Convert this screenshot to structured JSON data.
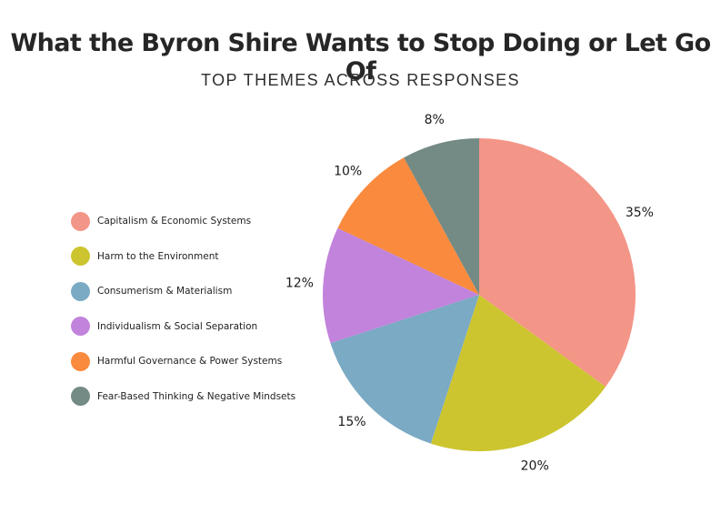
{
  "chart_data": {
    "type": "pie",
    "title": "What the Byron Shire Wants to Stop Doing or Let Go Of",
    "subtitle": "TOP THEMES ACROSS RESPONSES",
    "legend_position": "left",
    "slices": [
      {
        "name": "Capitalism & Economic Systems",
        "value": 35,
        "label": "35%",
        "color": "#F39587"
      },
      {
        "name": "Harm to the Environment",
        "value": 20,
        "label": "20%",
        "color": "#CCC52F"
      },
      {
        "name": "Consumerism & Materialism",
        "value": 15,
        "label": "15%",
        "color": "#7AAAC4"
      },
      {
        "name": "Individualism & Social Separation",
        "value": 12,
        "label": "12%",
        "color": "#C183DC"
      },
      {
        "name": "Harmful Governance & Power Systems",
        "value": 10,
        "label": "10%",
        "color": "#FA8A3D"
      },
      {
        "name": "Fear-Based Thinking & Negative Mindsets",
        "value": 8,
        "label": "8%",
        "color": "#738A85"
      }
    ]
  }
}
